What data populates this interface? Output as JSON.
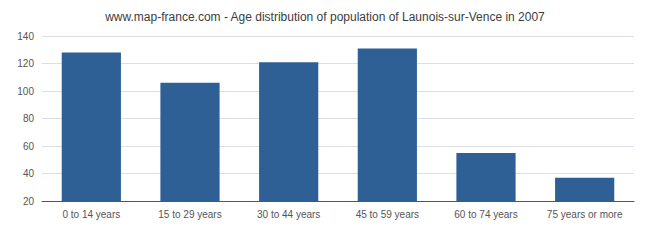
{
  "chart_data": {
    "type": "bar",
    "title": "www.map-france.com - Age distribution of population of Launois-sur-Vence in 2007",
    "categories": [
      "0 to 14 years",
      "15 to 29 years",
      "30 to 44 years",
      "45 to 59 years",
      "60 to 74 years",
      "75 years or more"
    ],
    "values": [
      128,
      106,
      121,
      131,
      55,
      37
    ],
    "color": "#2e6096",
    "ylim": [
      20,
      140
    ],
    "yticks": [
      20,
      40,
      60,
      80,
      100,
      120,
      140
    ],
    "grid": true
  }
}
